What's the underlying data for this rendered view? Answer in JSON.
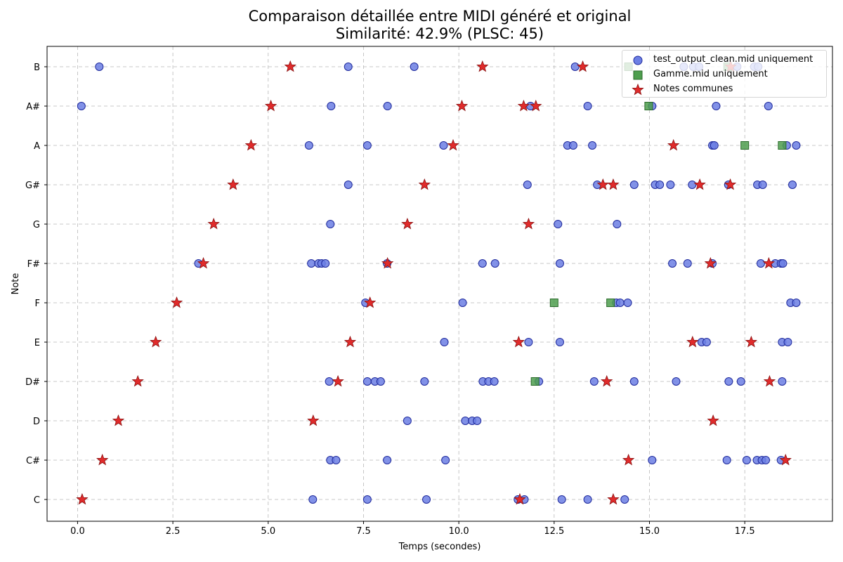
{
  "chart_data": {
    "type": "scatter",
    "title": "Comparaison détaillée entre MIDI généré et original",
    "subtitle": "Similarité: 42.9% (PLSC: 45)",
    "xlabel": "Temps (secondes)",
    "ylabel": "Note",
    "xlim": [
      -0.8,
      19.8
    ],
    "xticks": [
      0.0,
      2.5,
      5.0,
      7.5,
      10.0,
      12.5,
      15.0,
      17.5
    ],
    "xtick_labels": [
      "0.0",
      "2.5",
      "5.0",
      "7.5",
      "10.0",
      "12.5",
      "15.0",
      "17.5"
    ],
    "yticks": [
      "C",
      "C#",
      "D",
      "D#",
      "E",
      "F",
      "F#",
      "G",
      "G#",
      "A",
      "A#",
      "B"
    ],
    "grid": true,
    "legend_position": "top-right",
    "series": [
      {
        "name": "test_output_clean.mid uniquement",
        "marker": "circle",
        "color": "#6c7fe4",
        "edge": "#1f2a9c",
        "points": [
          [
            0.57,
            "B"
          ],
          [
            7.1,
            "B"
          ],
          [
            8.83,
            "B"
          ],
          [
            13.05,
            "B"
          ],
          [
            15.9,
            "B"
          ],
          [
            16.15,
            "B"
          ],
          [
            16.3,
            "B"
          ],
          [
            17.3,
            "B"
          ],
          [
            17.75,
            "B"
          ],
          [
            17.85,
            "B"
          ],
          [
            0.1,
            "A#"
          ],
          [
            6.65,
            "A#"
          ],
          [
            8.13,
            "A#"
          ],
          [
            11.88,
            "A#"
          ],
          [
            13.38,
            "A#"
          ],
          [
            15.07,
            "A#"
          ],
          [
            16.75,
            "A#"
          ],
          [
            18.12,
            "A#"
          ],
          [
            6.07,
            "A"
          ],
          [
            7.6,
            "A"
          ],
          [
            9.6,
            "A"
          ],
          [
            12.85,
            "A"
          ],
          [
            13.0,
            "A"
          ],
          [
            13.5,
            "A"
          ],
          [
            16.65,
            "A"
          ],
          [
            16.7,
            "A"
          ],
          [
            18.6,
            "A"
          ],
          [
            18.85,
            "A"
          ],
          [
            7.1,
            "G#"
          ],
          [
            11.8,
            "G#"
          ],
          [
            13.63,
            "G#"
          ],
          [
            14.6,
            "G#"
          ],
          [
            15.15,
            "G#"
          ],
          [
            15.27,
            "G#"
          ],
          [
            15.55,
            "G#"
          ],
          [
            16.12,
            "G#"
          ],
          [
            17.07,
            "G#"
          ],
          [
            17.83,
            "G#"
          ],
          [
            17.97,
            "G#"
          ],
          [
            18.75,
            "G#"
          ],
          [
            6.63,
            "G"
          ],
          [
            12.6,
            "G"
          ],
          [
            14.15,
            "G"
          ],
          [
            3.17,
            "F#"
          ],
          [
            6.13,
            "F#"
          ],
          [
            6.32,
            "F#"
          ],
          [
            6.4,
            "F#"
          ],
          [
            6.5,
            "F#"
          ],
          [
            8.12,
            "F#"
          ],
          [
            10.62,
            "F#"
          ],
          [
            10.95,
            "F#"
          ],
          [
            12.65,
            "F#"
          ],
          [
            15.6,
            "F#"
          ],
          [
            16.0,
            "F#"
          ],
          [
            16.65,
            "F#"
          ],
          [
            17.92,
            "F#"
          ],
          [
            18.3,
            "F#"
          ],
          [
            18.45,
            "F#"
          ],
          [
            18.5,
            "F#"
          ],
          [
            7.55,
            "F"
          ],
          [
            10.1,
            "F"
          ],
          [
            14.13,
            "F"
          ],
          [
            14.23,
            "F"
          ],
          [
            14.43,
            "F"
          ],
          [
            18.7,
            "F"
          ],
          [
            18.85,
            "F"
          ],
          [
            9.62,
            "E"
          ],
          [
            11.83,
            "E"
          ],
          [
            12.65,
            "E"
          ],
          [
            16.37,
            "E"
          ],
          [
            16.5,
            "E"
          ],
          [
            18.48,
            "E"
          ],
          [
            18.63,
            "E"
          ],
          [
            6.6,
            "D#"
          ],
          [
            7.6,
            "D#"
          ],
          [
            7.8,
            "D#"
          ],
          [
            7.95,
            "D#"
          ],
          [
            9.1,
            "D#"
          ],
          [
            10.63,
            "D#"
          ],
          [
            10.78,
            "D#"
          ],
          [
            10.93,
            "D#"
          ],
          [
            12.1,
            "D#"
          ],
          [
            13.55,
            "D#"
          ],
          [
            14.6,
            "D#"
          ],
          [
            15.7,
            "D#"
          ],
          [
            17.08,
            "D#"
          ],
          [
            17.4,
            "D#"
          ],
          [
            18.48,
            "D#"
          ],
          [
            8.65,
            "D"
          ],
          [
            10.17,
            "D"
          ],
          [
            10.35,
            "D"
          ],
          [
            10.48,
            "D"
          ],
          [
            6.63,
            "C#"
          ],
          [
            6.78,
            "C#"
          ],
          [
            8.12,
            "C#"
          ],
          [
            9.65,
            "C#"
          ],
          [
            15.07,
            "C#"
          ],
          [
            17.03,
            "C#"
          ],
          [
            17.55,
            "C#"
          ],
          [
            17.82,
            "C#"
          ],
          [
            17.95,
            "C#"
          ],
          [
            18.05,
            "C#"
          ],
          [
            18.45,
            "C#"
          ],
          [
            6.17,
            "C"
          ],
          [
            7.6,
            "C"
          ],
          [
            9.15,
            "C"
          ],
          [
            11.55,
            "C"
          ],
          [
            11.72,
            "C"
          ],
          [
            12.7,
            "C"
          ],
          [
            13.38,
            "C"
          ],
          [
            14.35,
            "C"
          ]
        ]
      },
      {
        "name": "Gamme.mid uniquement",
        "marker": "square",
        "color": "#4e9e4e",
        "edge": "#2a6a2a",
        "points": [
          [
            14.45,
            "B"
          ],
          [
            17.05,
            "B"
          ],
          [
            14.98,
            "A#"
          ],
          [
            17.5,
            "A"
          ],
          [
            18.48,
            "A"
          ],
          [
            12.5,
            "F"
          ],
          [
            13.98,
            "F"
          ],
          [
            12.0,
            "D#"
          ]
        ]
      },
      {
        "name": "Notes communes",
        "marker": "star",
        "color": "#e02b2b",
        "edge": "#8a1212",
        "points": [
          [
            5.58,
            "B"
          ],
          [
            10.62,
            "B"
          ],
          [
            13.25,
            "B"
          ],
          [
            17.13,
            "B"
          ],
          [
            5.07,
            "A#"
          ],
          [
            10.08,
            "A#"
          ],
          [
            11.7,
            "A#"
          ],
          [
            12.02,
            "A#"
          ],
          [
            4.55,
            "A"
          ],
          [
            9.85,
            "A"
          ],
          [
            15.63,
            "A"
          ],
          [
            4.08,
            "G#"
          ],
          [
            9.1,
            "G#"
          ],
          [
            13.78,
            "G#"
          ],
          [
            14.05,
            "G#"
          ],
          [
            16.32,
            "G#"
          ],
          [
            17.12,
            "G#"
          ],
          [
            3.57,
            "G"
          ],
          [
            8.65,
            "G"
          ],
          [
            11.83,
            "G"
          ],
          [
            3.3,
            "F#"
          ],
          [
            8.13,
            "F#"
          ],
          [
            16.6,
            "F#"
          ],
          [
            18.13,
            "F#"
          ],
          [
            2.6,
            "F"
          ],
          [
            7.67,
            "F"
          ],
          [
            2.05,
            "E"
          ],
          [
            7.15,
            "E"
          ],
          [
            11.57,
            "E"
          ],
          [
            16.13,
            "E"
          ],
          [
            17.67,
            "E"
          ],
          [
            1.58,
            "D#"
          ],
          [
            6.83,
            "D#"
          ],
          [
            13.88,
            "D#"
          ],
          [
            18.15,
            "D#"
          ],
          [
            1.07,
            "D"
          ],
          [
            6.18,
            "D"
          ],
          [
            16.67,
            "D"
          ],
          [
            0.65,
            "C#"
          ],
          [
            14.45,
            "C#"
          ],
          [
            18.57,
            "C#"
          ],
          [
            0.12,
            "C"
          ],
          [
            11.6,
            "C"
          ],
          [
            14.05,
            "C"
          ]
        ]
      }
    ]
  }
}
